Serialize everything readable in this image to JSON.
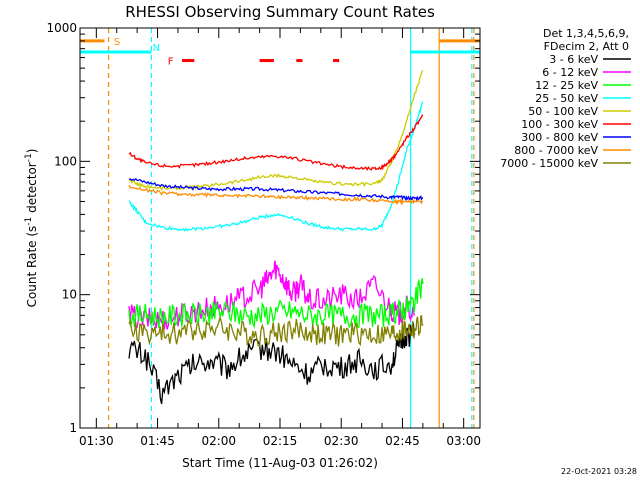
{
  "chart_data": {
    "type": "line",
    "title": "RHESSI Observing Summary Count Rates",
    "xlabel": "Start Time (11-Aug-03 01:26:02)",
    "ylabel_main": "Count Rate (s",
    "ylabel_sup": "-1",
    "ylabel_end": " detector",
    "ylabel_sup2": "-1",
    "ylabel_close": ")",
    "yscale": "log",
    "ylim": [
      1,
      1000
    ],
    "xlim_minutes": [
      0,
      98
    ],
    "x_ticks": [
      {
        "t": 4,
        "label": "01:30"
      },
      {
        "t": 19,
        "label": "01:45"
      },
      {
        "t": 34,
        "label": "02:00"
      },
      {
        "t": 49,
        "label": "02:15"
      },
      {
        "t": 64,
        "label": "02:30"
      },
      {
        "t": 79,
        "label": "02:45"
      },
      {
        "t": 94,
        "label": "03:00"
      }
    ],
    "y_ticks": [
      {
        "v": 1,
        "label": "1"
      },
      {
        "v": 10,
        "label": "10"
      },
      {
        "v": 100,
        "label": "100"
      },
      {
        "v": 1000,
        "label": "1000"
      }
    ],
    "legend_header": [
      "Det 1,3,4,5,6,9,",
      "FDecim 2, Att 0"
    ],
    "series": [
      {
        "name": "3 - 6 keV",
        "color": "#000000",
        "x": [
          12,
          16,
          20,
          24,
          28,
          32,
          36,
          40,
          44,
          48,
          52,
          56,
          60,
          64,
          68,
          72,
          76,
          78,
          80,
          82
        ],
        "y": [
          4,
          3.5,
          1.8,
          2.5,
          3,
          3.2,
          2.8,
          3.5,
          4,
          3.8,
          3,
          2.5,
          3,
          2.8,
          3.2,
          2.8,
          3,
          4,
          5,
          5
        ]
      },
      {
        "name": "6 - 12 keV",
        "color": "#ff00ff",
        "x": [
          12,
          16,
          20,
          24,
          28,
          32,
          36,
          40,
          44,
          46,
          48,
          50,
          52,
          54,
          56,
          60,
          64,
          68,
          72,
          76,
          78,
          80,
          82
        ],
        "y": [
          7,
          6.5,
          6.5,
          7,
          7.5,
          8,
          8.5,
          9.5,
          11,
          13,
          16,
          13,
          10,
          12,
          9,
          9,
          10,
          9,
          12,
          8,
          7,
          8,
          7
        ]
      },
      {
        "name": "12 - 25 keV",
        "color": "#00ff00",
        "x": [
          12,
          16,
          20,
          24,
          28,
          32,
          36,
          40,
          44,
          48,
          52,
          56,
          60,
          64,
          68,
          72,
          76,
          78,
          80,
          82,
          84
        ],
        "y": [
          7,
          7,
          6.8,
          7,
          7,
          7.2,
          7.5,
          7,
          7,
          7.5,
          7.5,
          7,
          7,
          7,
          7,
          7,
          7,
          7.5,
          8,
          9,
          12
        ]
      },
      {
        "name": "25 - 50 keV",
        "color": "#00ffff",
        "x": [
          12,
          14,
          16,
          20,
          24,
          28,
          32,
          36,
          40,
          44,
          48,
          52,
          56,
          60,
          64,
          68,
          72,
          74,
          76,
          78,
          80,
          82,
          84
        ],
        "y": [
          50,
          42,
          35,
          32,
          31,
          31,
          32,
          33,
          35,
          38,
          40,
          38,
          34,
          32,
          31,
          31,
          31,
          33,
          45,
          70,
          120,
          180,
          280
        ]
      },
      {
        "name": "50 - 100 keV",
        "color": "#cccc00",
        "x": [
          12,
          14,
          16,
          20,
          24,
          28,
          32,
          36,
          40,
          44,
          48,
          52,
          56,
          60,
          64,
          68,
          72,
          74,
          76,
          78,
          80,
          82,
          84
        ],
        "y": [
          72,
          68,
          65,
          63,
          63,
          64,
          66,
          69,
          72,
          76,
          78,
          76,
          72,
          69,
          68,
          67,
          68,
          72,
          95,
          130,
          200,
          320,
          480
        ]
      },
      {
        "name": "100 - 300 keV",
        "color": "#ff0000",
        "x": [
          12,
          14,
          16,
          20,
          24,
          28,
          32,
          36,
          40,
          44,
          48,
          52,
          56,
          60,
          64,
          68,
          72,
          74,
          76,
          78,
          80,
          82,
          84
        ],
        "y": [
          115,
          105,
          98,
          93,
          92,
          94,
          97,
          101,
          105,
          108,
          110,
          106,
          100,
          95,
          91,
          89,
          88,
          90,
          100,
          120,
          150,
          180,
          220
        ]
      },
      {
        "name": "300 - 800 keV",
        "color": "#0000ff",
        "x": [
          12,
          16,
          20,
          24,
          28,
          32,
          36,
          40,
          44,
          48,
          52,
          56,
          60,
          64,
          68,
          72,
          76,
          78,
          80,
          82,
          84
        ],
        "y": [
          75,
          70,
          66,
          64,
          63,
          62,
          62,
          62,
          62,
          61,
          60,
          59,
          58,
          57,
          56,
          55,
          54,
          54,
          53,
          53,
          53
        ]
      },
      {
        "name": "800 - 7000 keV",
        "color": "#ff8c00",
        "x": [
          12,
          16,
          20,
          24,
          28,
          32,
          36,
          40,
          44,
          48,
          52,
          56,
          60,
          64,
          68,
          72,
          76,
          78,
          80,
          82,
          84
        ],
        "y": [
          65,
          61,
          58,
          57,
          56,
          56,
          55,
          55,
          55,
          54,
          54,
          53,
          53,
          52,
          52,
          51,
          50,
          50,
          50,
          50,
          50
        ]
      },
      {
        "name": "7000 - 15000 keV",
        "color": "#808000",
        "x": [
          12,
          16,
          20,
          24,
          28,
          32,
          36,
          40,
          44,
          48,
          52,
          56,
          60,
          64,
          68,
          72,
          76,
          78,
          80,
          82,
          84
        ],
        "y": [
          5.5,
          5.2,
          5,
          5.2,
          5.5,
          5.8,
          5.5,
          5.2,
          5,
          5.2,
          5.5,
          5.2,
          5,
          5,
          5.2,
          5,
          5,
          5.2,
          5.5,
          5.5,
          6
        ]
      }
    ],
    "annotations": {
      "s_label": "S",
      "n_label": "N",
      "f_label": "F",
      "s_color": "#ff8c00",
      "n_color": "#00ffff",
      "f_color": "#ff0000",
      "s_bars_t": [
        [
          0,
          6
        ],
        [
          88,
          98
        ]
      ],
      "s_value": 800,
      "n_bars_t": [
        [
          0,
          17.5
        ],
        [
          81,
          98
        ]
      ],
      "n_value": 660,
      "f_bars_t": [
        [
          25,
          28
        ],
        [
          44,
          47.5
        ],
        [
          53,
          54.5
        ],
        [
          62,
          63.5
        ]
      ],
      "f_value": 570,
      "vlines": [
        {
          "t": 7,
          "color": "#ff8c00",
          "dash": true
        },
        {
          "t": 17.5,
          "color": "#00ffff",
          "dash": true
        },
        {
          "t": 81,
          "color": "#00ffff",
          "dash": false
        },
        {
          "t": 88,
          "color": "#ff8c00",
          "dash": false
        },
        {
          "t": 96,
          "color": "#00ffff",
          "dash": true
        },
        {
          "t": 96.5,
          "color": "#ff8c00",
          "dash": true
        }
      ]
    }
  },
  "timestamp": "22-Oct-2021 03:28"
}
